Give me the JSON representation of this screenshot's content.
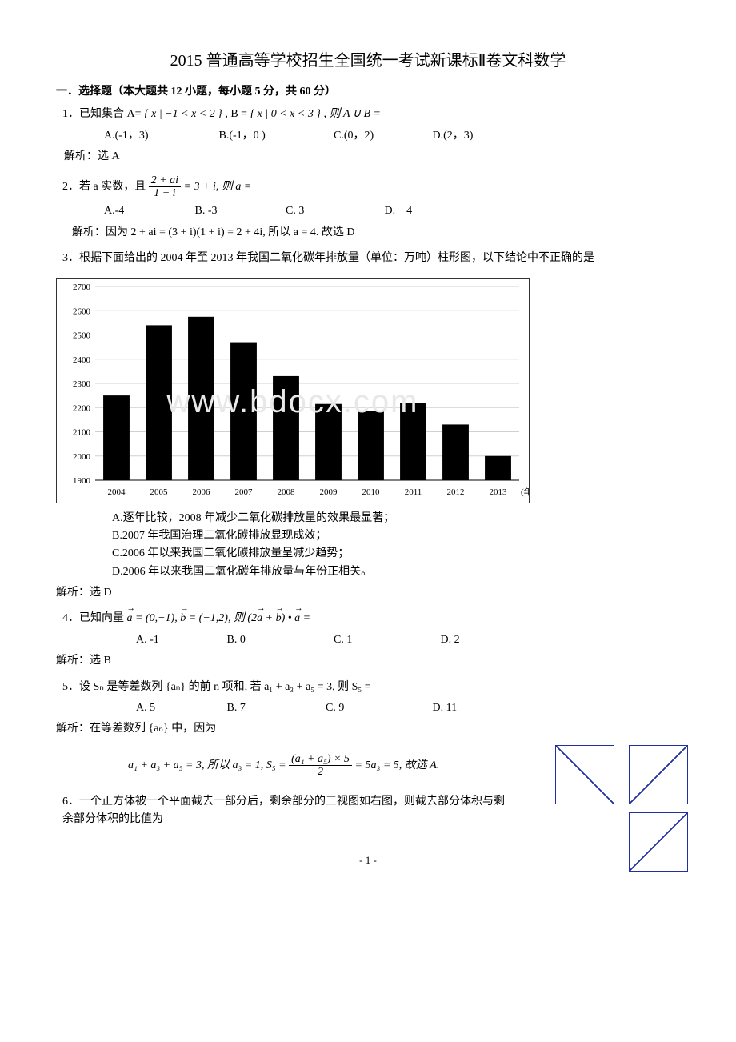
{
  "title": "2015 普通高等学校招生全国统一考试新课标Ⅱ卷文科数学",
  "section1": "一．选择题（本大题共 12 小题，每小题 5 分，共 60 分）",
  "q1": {
    "stem_prefix": "1．已知集合 A=",
    "set_a": "{ x | −1 < x < 2 }",
    "mid": ", B = ",
    "set_b": "{ x | 0 < x < 3 }",
    "tail": ", 则 A ∪ B =",
    "opts": {
      "a": "A.(-1，3)",
      "b": "B.(-1，0 )",
      "c": "C.(0，2)",
      "d": "D.(2，3)"
    },
    "ans": "解析：选 A"
  },
  "q2": {
    "stem_prefix": "2．若 a 实数，且",
    "frac_num": "2 + ai",
    "frac_den": "1 + i",
    "stem_suffix": "= 3 + i, 则 a =",
    "opts": {
      "a": "A.-4",
      "b": "B. -3",
      "c": "C. 3",
      "d": "D.　4"
    },
    "ans": "解析：因为 2 + ai = (3 + i)(1 + i) = 2 + 4i, 所以 a = 4. 故选 D"
  },
  "q3": {
    "stem": "3．根据下面给出的 2004 年至 2013 年我国二氧化碳年排放量（单位：万吨）柱形图，以下结论中不正确的是",
    "chart": {
      "type": "bar",
      "categories": [
        "2004",
        "2005",
        "2006",
        "2007",
        "2008",
        "2009",
        "2010",
        "2011",
        "2012",
        "2013"
      ],
      "x_suffix": "(年)",
      "values": [
        2250,
        2540,
        2575,
        2470,
        2330,
        2215,
        2185,
        2220,
        2130,
        2000
      ],
      "ylim": [
        1900,
        2700
      ],
      "ytick_step": 100,
      "bar_color": "#000000",
      "grid_color": "#d0d0d0",
      "background_color": "#ffffff",
      "border_color": "#333333",
      "label_fontsize": 11,
      "bar_width": 0.62
    },
    "opts": {
      "a": "A.逐年比较，2008 年减少二氧化碳排放量的效果最显著；",
      "b": "B.2007 年我国治理二氧化碳排放显现成效；",
      "c": "C.2006 年以来我国二氧化碳排放量呈减少趋势；",
      "d": "D.2006 年以来我国二氧化碳年排放量与年份正相关。"
    },
    "ans": "解析：选 D"
  },
  "watermark": "www.bdocx.com",
  "q4": {
    "stem_prefix": "4．已知向量",
    "vec_a": "a",
    "a_val": " = (0,−1), ",
    "vec_b": "b",
    "b_val": " = (−1,2), 则  (2",
    "mid2": " + ",
    "mid3": ") • ",
    "tail": " =",
    "opts": {
      "a": "A. -1",
      "b": "B. 0",
      "c": "C. 1",
      "d": "D. 2"
    },
    "ans": "解析：选 B"
  },
  "q5": {
    "stem": "5．设 Sₙ 是等差数列 {aₙ} 的前 n 项和, 若 a₁ + a₃ + a₅ = 3, 则 S₅ =",
    "opts": {
      "a": "A. 5",
      "b": "B. 7",
      "c": "C. 9",
      "d": "D. 11"
    },
    "ans_pre": "解析：在等差数列 {aₙ} 中，因为",
    "ans_line_pre": "a₁ + a₃ + a₅ = 3, 所以 a₃ = 1, S₅ = ",
    "frac_num": "(a₁ + a₅) × 5",
    "frac_den": "2",
    "ans_line_post": " = 5a₃ = 5, 故选 A."
  },
  "q6": {
    "stem": "6．一个正方体被一个平面截去一部分后，剩余部分的三视图如右图，则截去部分体积与剩余部分体积的比值为",
    "triview": {
      "border_color": "#2030a0"
    }
  },
  "page_number": "- 1 -"
}
